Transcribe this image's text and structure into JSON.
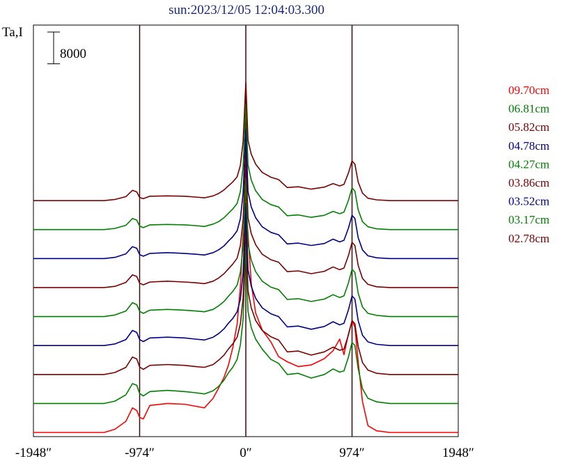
{
  "chart_data": {
    "type": "line",
    "title": "sun:2023/12/05 12:04:03.300",
    "ylabel": "Ta,I",
    "scale_bar_label": "8000",
    "scale_bar_value": 8000,
    "x_ticks": [
      {
        "value": -1948,
        "label": "-1948″"
      },
      {
        "value": -974,
        "label": "-974″"
      },
      {
        "value": 0,
        "label": "0″"
      },
      {
        "value": 974,
        "label": "974″"
      },
      {
        "value": 1948,
        "label": "1948″"
      }
    ],
    "xlim": [
      -1948,
      1948
    ],
    "vertical_markers": [
      -974,
      0,
      974
    ],
    "grid": false,
    "legend_position": "right",
    "series": [
      {
        "name": "09.70cm",
        "color": "#ff0000",
        "baseline": 0,
        "x": [
          -1948,
          -1300,
          -1200,
          -1100,
          -1040,
          -1000,
          -974,
          -940,
          -880,
          -720,
          -560,
          -460,
          -380,
          -300,
          -250,
          -200,
          -160,
          -120,
          -80,
          -50,
          -25,
          0,
          20,
          50,
          90,
          150,
          230,
          300,
          380,
          480,
          600,
          720,
          800,
          860,
          900,
          940,
          974,
          1000,
          1030,
          1070,
          1120,
          1200,
          1320,
          1948
        ],
        "y": [
          0,
          0,
          800,
          2800,
          6200,
          5500,
          3800,
          3400,
          6800,
          7300,
          7100,
          6600,
          6200,
          8600,
          11200,
          13900,
          16900,
          21300,
          27300,
          36900,
          50100,
          58200,
          50100,
          37500,
          30100,
          25800,
          22800,
          19100,
          17800,
          16600,
          17000,
          18600,
          20600,
          23500,
          19600,
          24700,
          28000,
          26600,
          17800,
          7800,
          1700,
          400,
          0,
          0
        ]
      },
      {
        "name": "06.81cm",
        "color": "#008000",
        "baseline": 7300,
        "x": [
          -1948,
          -1300,
          -1200,
          -1100,
          -1040,
          -1000,
          -974,
          -940,
          -880,
          -720,
          -560,
          -460,
          -380,
          -300,
          -250,
          -200,
          -160,
          -120,
          -80,
          -50,
          -25,
          0,
          20,
          50,
          90,
          150,
          230,
          300,
          380,
          480,
          600,
          720,
          800,
          860,
          900,
          940,
          974,
          1000,
          1030,
          1070,
          1120,
          1200,
          1320,
          1948
        ],
        "y": [
          0,
          0,
          600,
          2200,
          5000,
          4600,
          2500,
          1900,
          3000,
          3300,
          3000,
          2700,
          2400,
          3200,
          4300,
          5900,
          7700,
          9100,
          11100,
          14800,
          21300,
          40100,
          23200,
          19100,
          16200,
          13700,
          11100,
          10100,
          7300,
          7600,
          6400,
          7300,
          8700,
          7900,
          8200,
          11600,
          15400,
          14600,
          8800,
          3700,
          1300,
          400,
          0,
          0
        ]
      },
      {
        "name": "05.82cm",
        "color": "#7a0000",
        "baseline": 14600,
        "x": [
          -1948,
          -1300,
          -1200,
          -1100,
          -1040,
          -1000,
          -974,
          -940,
          -880,
          -720,
          -560,
          -460,
          -380,
          -300,
          -250,
          -200,
          -160,
          -120,
          -80,
          -50,
          -25,
          0,
          20,
          50,
          90,
          150,
          230,
          300,
          380,
          480,
          600,
          720,
          800,
          860,
          900,
          940,
          974,
          1000,
          1030,
          1070,
          1120,
          1200,
          1320,
          1948
        ],
        "y": [
          0,
          0,
          500,
          1800,
          4400,
          3900,
          1900,
          1300,
          2300,
          2500,
          2300,
          2000,
          1800,
          2500,
          3600,
          4900,
          6400,
          7700,
          9400,
          12800,
          19300,
          38000,
          21100,
          16800,
          13600,
          11100,
          9500,
          8700,
          5700,
          5900,
          4900,
          5700,
          6900,
          6100,
          6400,
          9900,
          13600,
          12800,
          7100,
          3000,
          1100,
          300,
          0,
          0
        ]
      },
      {
        "name": "04.78cm",
        "color": "#00008b",
        "baseline": 21900,
        "x": [
          -1948,
          -1300,
          -1200,
          -1100,
          -1040,
          -1000,
          -974,
          -940,
          -880,
          -720,
          -560,
          -460,
          -380,
          -300,
          -250,
          -200,
          -160,
          -120,
          -80,
          -50,
          -25,
          0,
          20,
          50,
          90,
          150,
          230,
          300,
          380,
          480,
          600,
          720,
          800,
          860,
          900,
          940,
          974,
          1000,
          1030,
          1070,
          1120,
          1200,
          1320,
          1948
        ],
        "y": [
          0,
          0,
          400,
          1500,
          3800,
          3300,
          1500,
          1000,
          1900,
          2100,
          1900,
          1600,
          1400,
          2100,
          3000,
          4200,
          5600,
          6800,
          8500,
          11700,
          18300,
          35900,
          19100,
          14900,
          11900,
          9500,
          8000,
          7300,
          4700,
          4900,
          4100,
          4800,
          6000,
          5200,
          5600,
          8900,
          12500,
          11700,
          6300,
          2600,
          900,
          300,
          0,
          0
        ]
      },
      {
        "name": "04.27cm",
        "color": "#008000",
        "baseline": 29200,
        "x": [
          -1948,
          -1300,
          -1200,
          -1100,
          -1040,
          -1000,
          -974,
          -940,
          -880,
          -720,
          -560,
          -460,
          -380,
          -300,
          -250,
          -200,
          -160,
          -120,
          -80,
          -50,
          -25,
          0,
          20,
          50,
          90,
          150,
          230,
          300,
          380,
          480,
          600,
          720,
          800,
          860,
          900,
          940,
          974,
          1000,
          1030,
          1070,
          1120,
          1200,
          1320,
          1948
        ],
        "y": [
          0,
          0,
          400,
          1400,
          3500,
          3000,
          1300,
          800,
          1600,
          1800,
          1600,
          1400,
          1200,
          1800,
          2700,
          3800,
          5100,
          6300,
          7900,
          11200,
          17700,
          34800,
          18300,
          14200,
          11300,
          8900,
          7400,
          6800,
          4300,
          4500,
          3800,
          4400,
          5500,
          4800,
          5200,
          8400,
          11900,
          11100,
          5900,
          2400,
          800,
          300,
          0,
          0
        ]
      },
      {
        "name": "03.86cm",
        "color": "#7a0000",
        "baseline": 36500,
        "x": [
          -1948,
          -1300,
          -1200,
          -1100,
          -1040,
          -1000,
          -974,
          -940,
          -880,
          -720,
          -560,
          -460,
          -380,
          -300,
          -250,
          -200,
          -160,
          -120,
          -80,
          -50,
          -25,
          0,
          20,
          50,
          90,
          150,
          230,
          300,
          380,
          480,
          600,
          720,
          800,
          860,
          900,
          940,
          974,
          1000,
          1030,
          1070,
          1120,
          1200,
          1320,
          1948
        ],
        "y": [
          0,
          0,
          300,
          1300,
          3200,
          2800,
          1100,
          700,
          1400,
          1600,
          1400,
          1200,
          1000,
          1600,
          2400,
          3500,
          4700,
          5900,
          7400,
          10600,
          17100,
          33800,
          17600,
          13600,
          10800,
          8400,
          7000,
          6400,
          4000,
          4200,
          3500,
          4100,
          5200,
          4500,
          4900,
          8000,
          11400,
          10600,
          5600,
          2300,
          800,
          200,
          0,
          0
        ]
      },
      {
        "name": "03.52cm",
        "color": "#00008b",
        "baseline": 43800,
        "x": [
          -1948,
          -1300,
          -1200,
          -1100,
          -1040,
          -1000,
          -974,
          -940,
          -880,
          -720,
          -560,
          -460,
          -380,
          -300,
          -250,
          -200,
          -160,
          -120,
          -80,
          -50,
          -25,
          0,
          20,
          50,
          90,
          150,
          230,
          300,
          380,
          480,
          600,
          720,
          800,
          860,
          900,
          940,
          974,
          1000,
          1030,
          1070,
          1120,
          1200,
          1320,
          1948
        ],
        "y": [
          0,
          0,
          300,
          1200,
          3000,
          2600,
          1000,
          600,
          1300,
          1500,
          1300,
          1100,
          900,
          1500,
          2200,
          3200,
          4400,
          5500,
          7000,
          10100,
          16500,
          32700,
          16900,
          13000,
          10300,
          8000,
          6600,
          6000,
          3700,
          3900,
          3300,
          3800,
          4900,
          4200,
          4600,
          7600,
          10900,
          10100,
          5300,
          2200,
          700,
          200,
          0,
          0
        ]
      },
      {
        "name": "03.17cm",
        "color": "#008000",
        "baseline": 51100,
        "x": [
          -1948,
          -1300,
          -1200,
          -1100,
          -1040,
          -1000,
          -974,
          -940,
          -880,
          -720,
          -560,
          -460,
          -380,
          -300,
          -250,
          -200,
          -160,
          -120,
          -80,
          -50,
          -25,
          0,
          20,
          50,
          90,
          150,
          230,
          300,
          380,
          480,
          600,
          720,
          800,
          860,
          900,
          940,
          974,
          1000,
          1030,
          1070,
          1120,
          1200,
          1320,
          1948
        ],
        "y": [
          0,
          0,
          300,
          1100,
          2800,
          2400,
          900,
          500,
          1200,
          1300,
          1200,
          1000,
          800,
          1400,
          2000,
          3000,
          4100,
          5200,
          6600,
          9600,
          15900,
          31600,
          16300,
          12500,
          9800,
          7600,
          6300,
          5700,
          3500,
          3700,
          3100,
          3600,
          4600,
          4000,
          4400,
          7300,
          10500,
          9700,
          5000,
          2000,
          700,
          200,
          0,
          0
        ]
      },
      {
        "name": "02.78cm",
        "color": "#7a0000",
        "baseline": 58400,
        "x": [
          -1948,
          -1300,
          -1200,
          -1100,
          -1040,
          -1000,
          -974,
          -940,
          -880,
          -720,
          -560,
          -460,
          -380,
          -300,
          -250,
          -200,
          -160,
          -120,
          -80,
          -50,
          -25,
          0,
          20,
          50,
          90,
          150,
          230,
          300,
          380,
          480,
          600,
          720,
          800,
          860,
          900,
          940,
          974,
          1000,
          1030,
          1070,
          1120,
          1200,
          1320,
          1948
        ],
        "y": [
          0,
          0,
          300,
          1000,
          2600,
          2200,
          800,
          500,
          1100,
          1200,
          1100,
          900,
          700,
          1200,
          1800,
          2700,
          3700,
          4700,
          6000,
          8900,
          14900,
          29800,
          15200,
          11700,
          9200,
          7100,
          5900,
          5300,
          3300,
          3500,
          2900,
          3400,
          4300,
          3700,
          4100,
          6900,
          10000,
          9200,
          4700,
          1900,
          600,
          200,
          0,
          0
        ]
      }
    ]
  }
}
